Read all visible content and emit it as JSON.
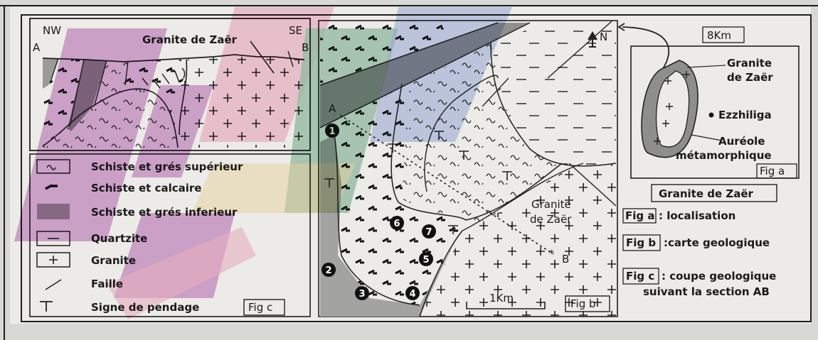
{
  "colors": {
    "paper": "#ecebe7",
    "border": "#202020",
    "shade_dark": "#8a8a88",
    "shade_light": "#bdbdbb",
    "watermark_purple": "#b04bb0",
    "watermark_green": "#2e8b57",
    "watermark_blue": "#3a62c9",
    "watermark_pink": "#f06a9a"
  },
  "fig_c": {
    "nw": "NW",
    "se": "SE",
    "a": "A",
    "b": "B",
    "title": "Granite de Zaër",
    "tag": "Fig c"
  },
  "legend": [
    {
      "icon": "schist-wave-icon",
      "label": "Schiste et grés supérieur"
    },
    {
      "icon": "schist-limestone-icon",
      "label": "Schiste et calcaire"
    },
    {
      "icon": "shaded-icon",
      "label": "Schiste et grés inferieur"
    },
    {
      "icon": "quartzite-icon",
      "label": "Quartzite"
    },
    {
      "icon": "granite-cross-icon",
      "label": "Granite"
    },
    {
      "icon": "fault-line-icon",
      "label": "Faille"
    },
    {
      "icon": "dip-sign-icon",
      "label": "Signe de pendage"
    }
  ],
  "fig_b": {
    "north": "N",
    "a": "A",
    "b": "B",
    "granite_line1": "Granite",
    "granite_line2": "de Zaër",
    "scale": "1Km",
    "tag": "Fig b",
    "numbers": [
      "1",
      "2",
      "3",
      "4",
      "5",
      "6",
      "7"
    ]
  },
  "fig_a": {
    "scale": "8Km",
    "granite_line1": "Granite",
    "granite_line2": "de Zaër",
    "town": "Ezzhiliga",
    "aureole_line1": "Auréole",
    "aureole_line2": "métamorphique",
    "tag": "Fig a"
  },
  "captions": {
    "title": "Granite de Zaër",
    "fa_tag": "Fig a",
    "fa_text": ": localisation",
    "fb_tag": "Fig b",
    "fb_text": ":carte geologique",
    "fc_tag": "Fig c",
    "fc_line1": ": coupe geologique",
    "fc_line2": "suivant la section AB"
  }
}
